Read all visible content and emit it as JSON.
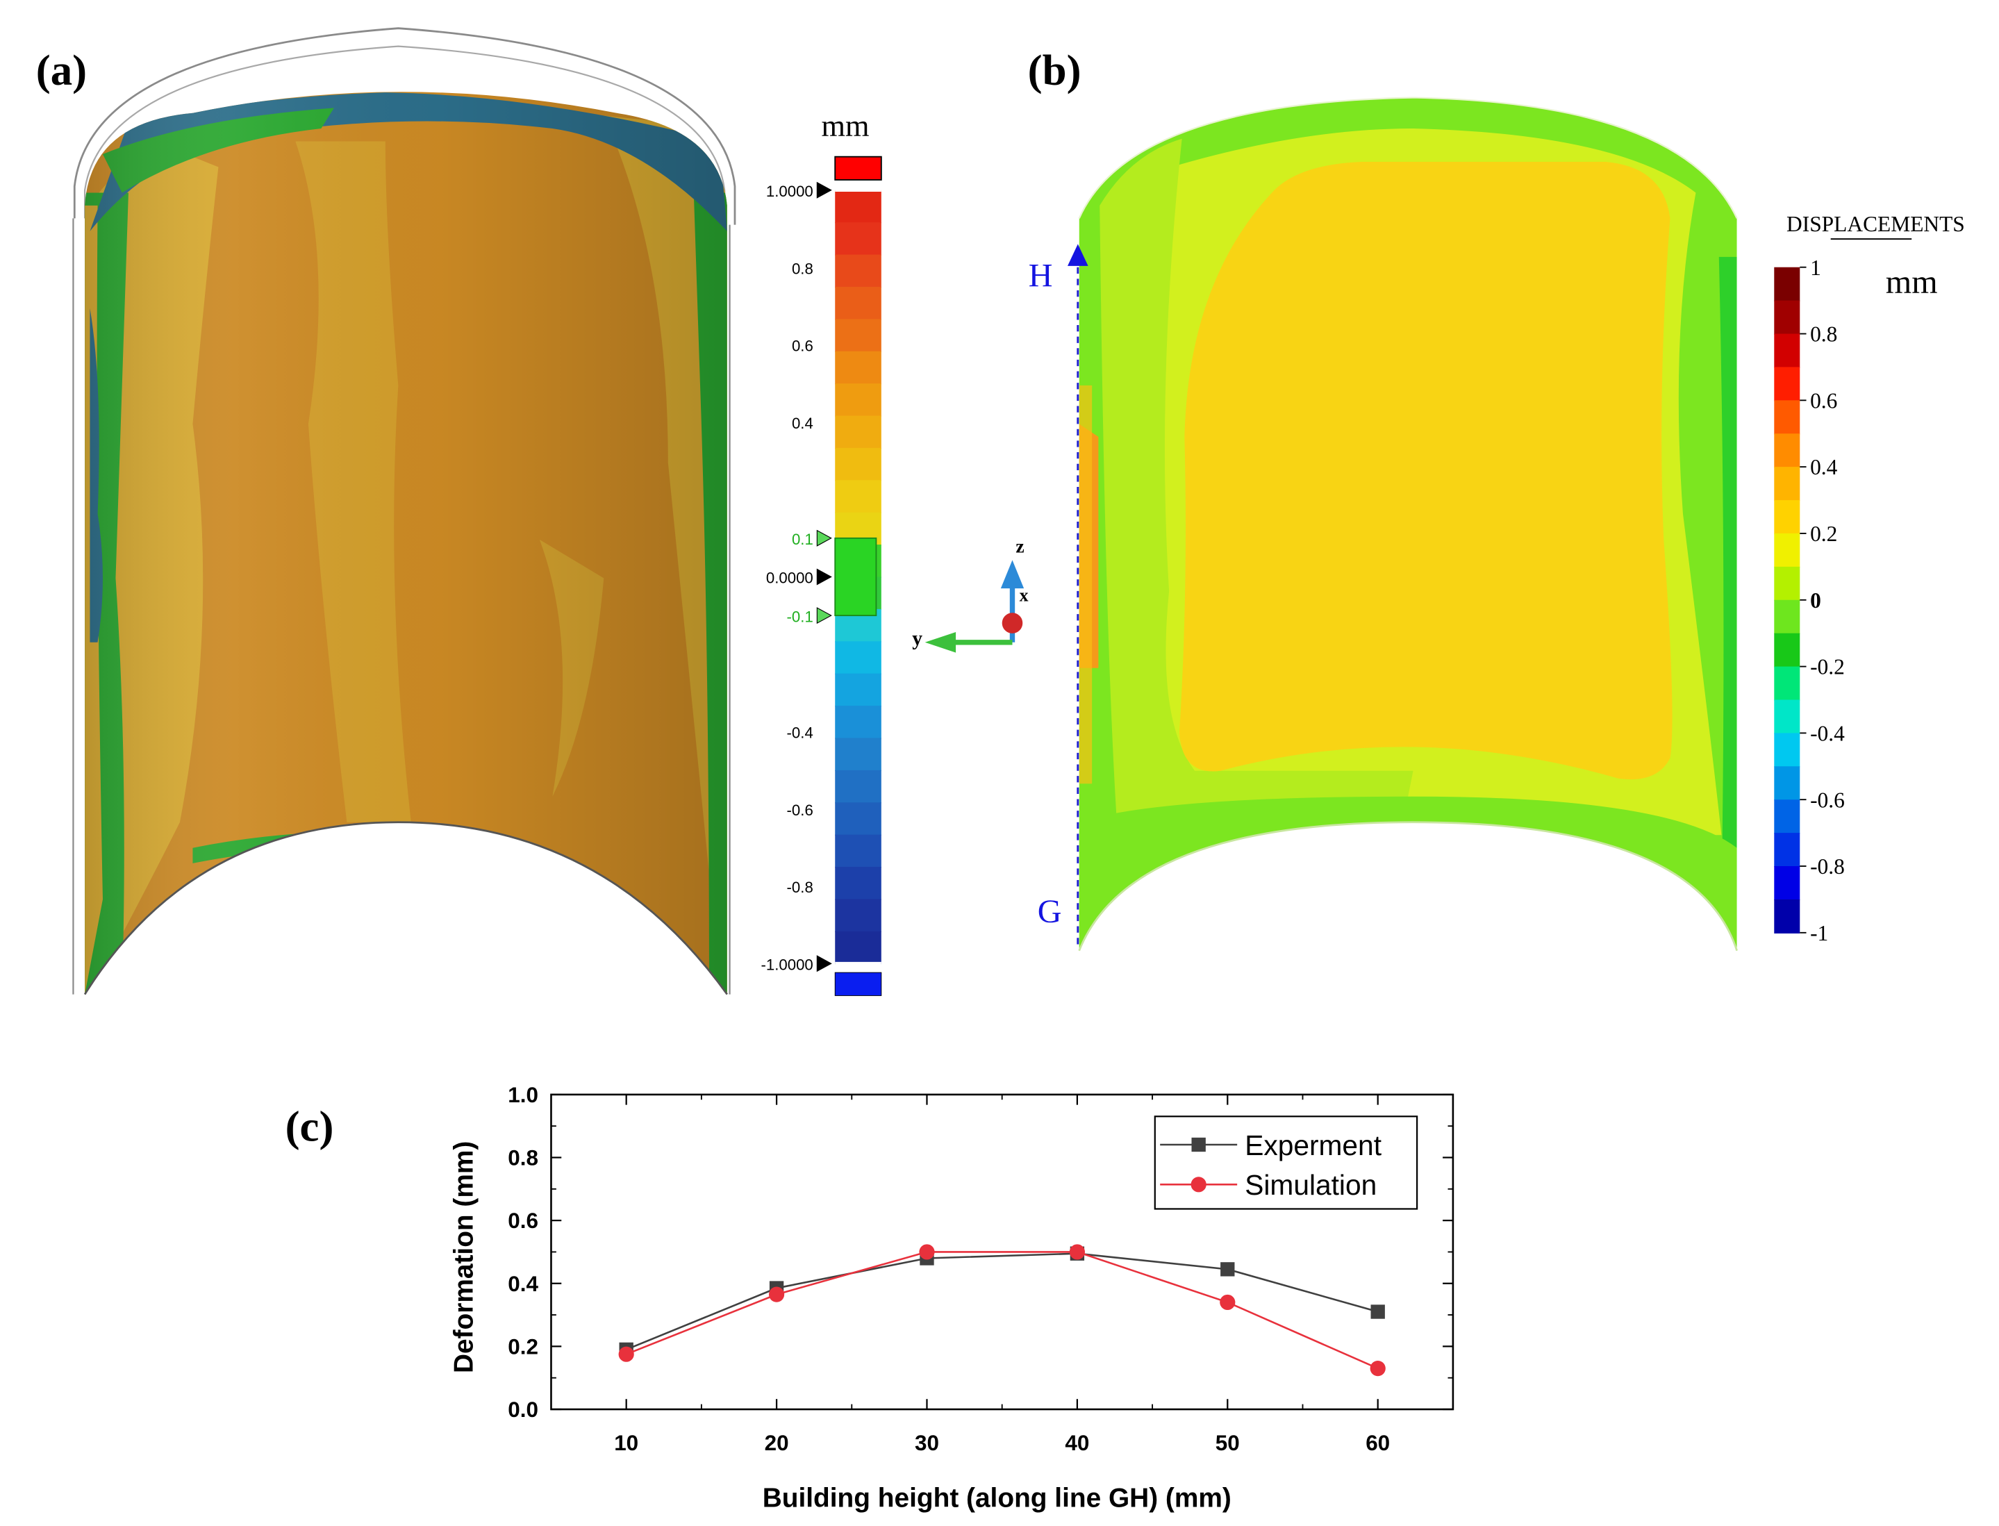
{
  "panels": {
    "a": "(a)",
    "b": "(b)",
    "c": "(c)"
  },
  "panel_a": {
    "unit": "mm",
    "legend_ticks": [
      "1.0000",
      "0.8",
      "0.6",
      "0.4",
      "0.1",
      "0.0000",
      "-0.1",
      "-0.4",
      "-0.6",
      "-0.8",
      "-1.0000"
    ],
    "legend_colors": [
      "#e32814",
      "#e6331a",
      "#e84a1a",
      "#ea5e18",
      "#ec7016",
      "#ee8a12",
      "#ef9c10",
      "#f0ac10",
      "#f0bc10",
      "#efcc12",
      "#ead414",
      "#3ad02c",
      "#32c83c",
      "#1ec8d6",
      "#10b8e4",
      "#14a4e0",
      "#1a90d8",
      "#2080cc",
      "#2070c4",
      "#1f60bc",
      "#1e50b4",
      "#1c40aa",
      "#1c34a0",
      "#1a2c98"
    ],
    "over_color": "#ff0000",
    "under_color": "#0a1ef0",
    "surface_colors": {
      "main": "#cc8a24",
      "light": "#d8aa30",
      "green": "#2aa830",
      "blue": "#2c6e8a"
    }
  },
  "axes_triad": {
    "z": "z",
    "x": "x",
    "y": "y"
  },
  "panel_b": {
    "title": "DISPLACEMENTS",
    "unit": "mm",
    "legend_ticks": [
      "1",
      "0.8",
      "0.6",
      "0.4",
      "0.2",
      "0",
      "-0.2",
      "-0.4",
      "-0.6",
      "-0.8",
      "-1"
    ],
    "legend_colors": [
      "#7a0000",
      "#a00000",
      "#d20000",
      "#ff1e00",
      "#ff5a00",
      "#ff8c00",
      "#ffb400",
      "#ffd200",
      "#f0f000",
      "#b4f000",
      "#6ee61e",
      "#18c818",
      "#00e678",
      "#00e6c8",
      "#00c8f0",
      "#0096e6",
      "#0064e6",
      "#0032e6",
      "#0000e6",
      "#0000aa"
    ],
    "line_labels": {
      "top": "H",
      "bottom": "G"
    },
    "surface_colors": {
      "outer": "#7ce620",
      "mid": "#d2f01e",
      "core": "#f8d414",
      "hot": "#f59a1a"
    }
  },
  "chart_data": {
    "type": "line",
    "xlabel": "Building height (along line GH) (mm)",
    "ylabel": "Deformation (mm)",
    "xlim": [
      5,
      65
    ],
    "ylim": [
      0,
      1.0
    ],
    "xticks": [
      10,
      20,
      30,
      40,
      50,
      60
    ],
    "yticks": [
      0.0,
      0.2,
      0.4,
      0.6,
      0.8,
      1.0
    ],
    "ytick_labels": [
      "0.0",
      "0.2",
      "0.4",
      "0.6",
      "0.8",
      "1.0"
    ],
    "legend_position": "top-right",
    "x": [
      10,
      20,
      30,
      40,
      50,
      60
    ],
    "series": [
      {
        "name": "Experment",
        "values": [
          0.19,
          0.385,
          0.48,
          0.495,
          0.445,
          0.31
        ],
        "color": "#404040",
        "marker": "square"
      },
      {
        "name": "Simulation",
        "values": [
          0.175,
          0.365,
          0.5,
          0.5,
          0.34,
          0.13
        ],
        "color": "#e8313c",
        "marker": "circle"
      }
    ]
  }
}
